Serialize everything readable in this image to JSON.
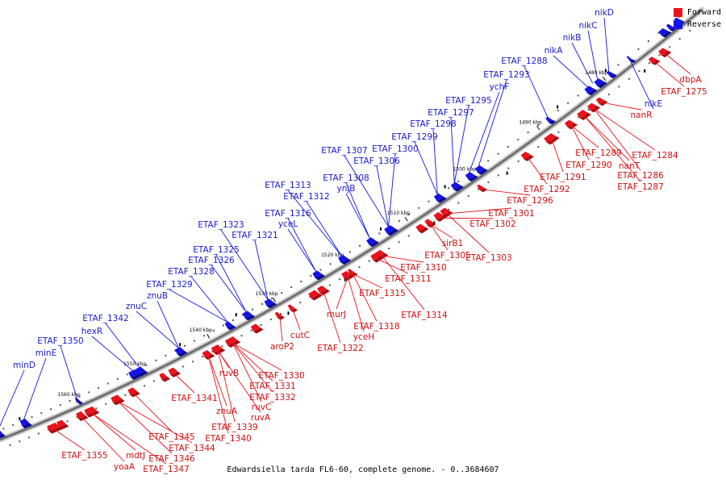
{
  "colors": {
    "forward": "#e8141b",
    "forward_dark": "#a40c10",
    "reverse": "#1414e6",
    "reverse_dark": "#0a0a96",
    "axis": "#777777",
    "tick": "#000000"
  },
  "legend": {
    "forward_label": "Forward",
    "reverse_label": "Reverse"
  },
  "caption": "Edwardsiella tarda FL6-60, complete genome. - 0..3684607",
  "scale_ticks": [
    "1480 kbp",
    "1490 kbp",
    "1500 kbp",
    "1510 kbp",
    "1520 kbp",
    "1530 kbp",
    "1540 kbp",
    "1550 kbp",
    "1560 kbp"
  ],
  "reverse_labels": [
    "nikD",
    "nikC",
    "nikB",
    "nikA",
    "nikE",
    "ETAF_1288",
    "ETAF_1293",
    "ychF",
    "ETAF_1295",
    "ETAF_1297",
    "ETAF_1298",
    "ETAF_1299",
    "ETAF_1307",
    "ETAF_1300",
    "ETAF_1306",
    "ETAF_1308",
    "ynjB",
    "ETAF_1313",
    "ETAF_1312",
    "ETAF_1316",
    "yceL",
    "ETAF_1323",
    "ETAF_1321",
    "ETAF_1325",
    "ETAF_1326",
    "ETAF_1328",
    "ETAF_1329",
    "znuB",
    "znuC",
    "ETAF_1342",
    "hexR",
    "ETAF_1350",
    "minE",
    "minD"
  ],
  "forward_labels": [
    "dbpA",
    "ETAF_1275",
    "nanR",
    "ETAF_1284",
    "nanT",
    "ETAF_1289",
    "ETAF_1290",
    "ETAF_1286",
    "ETAF_1291",
    "ETAF_1287",
    "ETAF_1292",
    "ETAF_1296",
    "ETAF_1301",
    "ETAF_1302",
    "sirB1",
    "ETAF_1305",
    "ETAF_1303",
    "ETAF_1310",
    "ETAF_1311",
    "ETAF_1315",
    "ETAF_1314",
    "murJ",
    "ETAF_1318",
    "yceH",
    "ETAF_1322",
    "cutC",
    "aroP2",
    "ETAF_1330",
    "ruvB",
    "ETAF_1331",
    "ETAF_1332",
    "ruvC",
    "ruvA",
    "ETAF_1341",
    "znuA",
    "ETAF_1339",
    "ETAF_1340",
    "ETAF_1345",
    "ETAF_1344",
    "ETAF_1346",
    "mdtJ",
    "ETAF_1355",
    "yoaA",
    "ETAF_1347"
  ]
}
